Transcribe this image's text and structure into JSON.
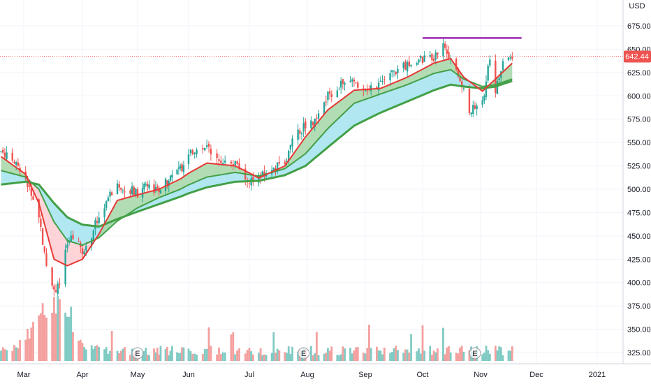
{
  "chart_data": {
    "type": "candlestick",
    "currency": "USD",
    "last_price": "642.44",
    "last_price_value": 642.44,
    "ylim": [
      318,
      708
    ],
    "y_ticks": [
      325,
      350,
      375,
      400,
      425,
      450,
      475,
      500,
      525,
      550,
      575,
      600,
      625,
      650,
      675
    ],
    "y_tick_labels": [
      "325.00",
      "350.00",
      "375.00",
      "400.00",
      "425.00",
      "450.00",
      "475.00",
      "500.00",
      "525.00",
      "550.00",
      "575.00",
      "600.00",
      "625.00",
      "650.00",
      "675.00"
    ],
    "x_axis_labels": [
      "Mar",
      "Apr",
      "May",
      "Jun",
      "Jul",
      "Aug",
      "Sep",
      "Oct",
      "Nov",
      "Dec",
      "2021"
    ],
    "earnings_markers": [
      "E",
      "E",
      "E"
    ],
    "resistance_line": {
      "from": "2020-10-01",
      "to": "2020-11-23",
      "value": 662
    },
    "colors": {
      "up": "#26a69a",
      "down": "#ef5350",
      "volume_up": "#80cbc4",
      "volume_down": "#f4a09e",
      "ema_fast": "#e53935",
      "ema_mid": "#43a047",
      "ema_slow": "#43a047",
      "ribbon_fast_up": "#a5d6a7",
      "ribbon_fast_down": "#ffcdd2",
      "ribbon_slow": "#a7e4f0",
      "resistance": "#9c27b0",
      "price_tag": "#ef5350"
    },
    "series": [
      {
        "name": "price",
        "points": [
          [
            "2020-02-18",
            540
          ],
          [
            "2020-02-24",
            530
          ],
          [
            "2020-03-02",
            512
          ],
          [
            "2020-03-09",
            470
          ],
          [
            "2020-03-13",
            420
          ],
          [
            "2020-03-17",
            390
          ],
          [
            "2020-03-20",
            402
          ],
          [
            "2020-03-24",
            440
          ],
          [
            "2020-03-27",
            450
          ],
          [
            "2020-04-01",
            432
          ],
          [
            "2020-04-06",
            452
          ],
          [
            "2020-04-10",
            473
          ],
          [
            "2020-04-15",
            490
          ],
          [
            "2020-04-20",
            505
          ],
          [
            "2020-04-27",
            500
          ],
          [
            "2020-05-01",
            495
          ],
          [
            "2020-05-07",
            507
          ],
          [
            "2020-05-14",
            496
          ],
          [
            "2020-05-20",
            512
          ],
          [
            "2020-05-27",
            522
          ],
          [
            "2020-06-03",
            540
          ],
          [
            "2020-06-10",
            545
          ],
          [
            "2020-06-17",
            532
          ],
          [
            "2020-06-24",
            527
          ],
          [
            "2020-06-29",
            506
          ],
          [
            "2020-07-06",
            512
          ],
          [
            "2020-07-13",
            520
          ],
          [
            "2020-07-20",
            530
          ],
          [
            "2020-07-24",
            552
          ],
          [
            "2020-07-31",
            570
          ],
          [
            "2020-08-06",
            572
          ],
          [
            "2020-08-12",
            600
          ],
          [
            "2020-08-19",
            613
          ],
          [
            "2020-08-26",
            615
          ],
          [
            "2020-09-02",
            608
          ],
          [
            "2020-09-09",
            612
          ],
          [
            "2020-09-16",
            625
          ],
          [
            "2020-09-23",
            633
          ],
          [
            "2020-09-30",
            638
          ],
          [
            "2020-10-07",
            642
          ],
          [
            "2020-10-12",
            653
          ],
          [
            "2020-10-19",
            628
          ],
          [
            "2020-10-26",
            585
          ],
          [
            "2020-10-29",
            586
          ],
          [
            "2020-11-03",
            600
          ],
          [
            "2020-11-06",
            643
          ],
          [
            "2020-11-09",
            607
          ],
          [
            "2020-11-13",
            638
          ],
          [
            "2020-11-18",
            642.44
          ]
        ]
      },
      {
        "name": "ema_fast",
        "points": [
          [
            "2020-02-18",
            535
          ],
          [
            "2020-03-02",
            516
          ],
          [
            "2020-03-09",
            485
          ],
          [
            "2020-03-13",
            455
          ],
          [
            "2020-03-17",
            425
          ],
          [
            "2020-03-24",
            418
          ],
          [
            "2020-04-01",
            425
          ],
          [
            "2020-04-10",
            452
          ],
          [
            "2020-04-20",
            488
          ],
          [
            "2020-05-01",
            494
          ],
          [
            "2020-05-14",
            500
          ],
          [
            "2020-05-27",
            511
          ],
          [
            "2020-06-10",
            528
          ],
          [
            "2020-06-24",
            525
          ],
          [
            "2020-07-06",
            512
          ],
          [
            "2020-07-20",
            525
          ],
          [
            "2020-07-31",
            556
          ],
          [
            "2020-08-12",
            585
          ],
          [
            "2020-08-26",
            606
          ],
          [
            "2020-09-09",
            608
          ],
          [
            "2020-09-23",
            620
          ],
          [
            "2020-10-07",
            635
          ],
          [
            "2020-10-16",
            640
          ],
          [
            "2020-10-23",
            620
          ],
          [
            "2020-11-02",
            605
          ],
          [
            "2020-11-09",
            618
          ],
          [
            "2020-11-18",
            635
          ]
        ]
      },
      {
        "name": "ema_mid",
        "points": [
          [
            "2020-02-18",
            520
          ],
          [
            "2020-03-02",
            513
          ],
          [
            "2020-03-09",
            500
          ],
          [
            "2020-03-17",
            465
          ],
          [
            "2020-03-24",
            445
          ],
          [
            "2020-04-01",
            440
          ],
          [
            "2020-04-10",
            448
          ],
          [
            "2020-04-20",
            466
          ],
          [
            "2020-05-01",
            480
          ],
          [
            "2020-05-14",
            491
          ],
          [
            "2020-05-27",
            500
          ],
          [
            "2020-06-10",
            513
          ],
          [
            "2020-06-24",
            518
          ],
          [
            "2020-07-06",
            514
          ],
          [
            "2020-07-20",
            522
          ],
          [
            "2020-07-31",
            538
          ],
          [
            "2020-08-12",
            565
          ],
          [
            "2020-08-26",
            592
          ],
          [
            "2020-09-09",
            602
          ],
          [
            "2020-09-23",
            612
          ],
          [
            "2020-10-07",
            624
          ],
          [
            "2020-10-16",
            628
          ],
          [
            "2020-10-23",
            618
          ],
          [
            "2020-11-02",
            610
          ],
          [
            "2020-11-09",
            612
          ],
          [
            "2020-11-18",
            618
          ]
        ]
      },
      {
        "name": "ema_slow",
        "points": [
          [
            "2020-02-18",
            505
          ],
          [
            "2020-03-02",
            508
          ],
          [
            "2020-03-09",
            505
          ],
          [
            "2020-03-17",
            485
          ],
          [
            "2020-03-24",
            470
          ],
          [
            "2020-04-01",
            462
          ],
          [
            "2020-04-10",
            460
          ],
          [
            "2020-04-20",
            468
          ],
          [
            "2020-05-01",
            476
          ],
          [
            "2020-05-14",
            484
          ],
          [
            "2020-05-27",
            492
          ],
          [
            "2020-06-10",
            502
          ],
          [
            "2020-06-24",
            508
          ],
          [
            "2020-07-06",
            509
          ],
          [
            "2020-07-20",
            515
          ],
          [
            "2020-07-31",
            525
          ],
          [
            "2020-08-12",
            545
          ],
          [
            "2020-08-26",
            568
          ],
          [
            "2020-09-09",
            582
          ],
          [
            "2020-09-23",
            594
          ],
          [
            "2020-10-07",
            606
          ],
          [
            "2020-10-16",
            612
          ],
          [
            "2020-10-23",
            610
          ],
          [
            "2020-11-02",
            608
          ],
          [
            "2020-11-09",
            610
          ],
          [
            "2020-11-18",
            616
          ]
        ]
      }
    ]
  }
}
